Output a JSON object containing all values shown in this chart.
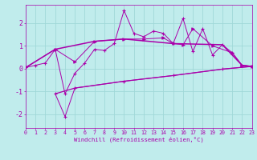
{
  "xlabel": "Windchill (Refroidissement éolien,°C)",
  "xlim": [
    0,
    23
  ],
  "ylim": [
    -2.6,
    2.8
  ],
  "yticks": [
    -2,
    -1,
    0,
    1,
    2
  ],
  "xticks": [
    0,
    1,
    2,
    3,
    4,
    5,
    6,
    7,
    8,
    9,
    10,
    11,
    12,
    13,
    14,
    15,
    16,
    17,
    18,
    19,
    20,
    21,
    22,
    23
  ],
  "bg_color": "#c0ecec",
  "grid_color": "#a0d8d8",
  "line_color": "#aa00aa",
  "line1_x": [
    0,
    1,
    2,
    3,
    4,
    5,
    6,
    7,
    8,
    9,
    10,
    11,
    12,
    13,
    14,
    15,
    16,
    17,
    18,
    19,
    20,
    21,
    22,
    23
  ],
  "line1_y": [
    0.05,
    0.15,
    0.25,
    0.85,
    -1.1,
    -0.2,
    0.25,
    0.85,
    0.8,
    1.1,
    2.55,
    1.55,
    1.4,
    1.65,
    1.55,
    1.1,
    2.2,
    0.75,
    1.75,
    0.6,
    1.05,
    0.7,
    0.15,
    0.1
  ],
  "line2_x": [
    0,
    3,
    5,
    7,
    10,
    12,
    14,
    15,
    16,
    17,
    19,
    21,
    22,
    23
  ],
  "line2_y": [
    0.05,
    0.85,
    0.3,
    1.2,
    1.3,
    1.3,
    1.35,
    1.1,
    1.05,
    1.75,
    1.0,
    0.7,
    0.15,
    0.1
  ],
  "line3_x": [
    0,
    3,
    7,
    10,
    15,
    20,
    22,
    23
  ],
  "line3_y": [
    0.05,
    0.85,
    1.2,
    1.3,
    1.1,
    1.05,
    0.15,
    0.1
  ],
  "line4_x": [
    3,
    4,
    5,
    10,
    15,
    20,
    23
  ],
  "line4_y": [
    -1.1,
    -2.1,
    -0.85,
    -0.55,
    -0.3,
    -0.02,
    0.1
  ],
  "line4b_x": [
    3,
    5,
    10,
    15,
    20,
    23
  ],
  "line4b_y": [
    -1.1,
    -0.85,
    -0.55,
    -0.3,
    -0.02,
    0.1
  ]
}
